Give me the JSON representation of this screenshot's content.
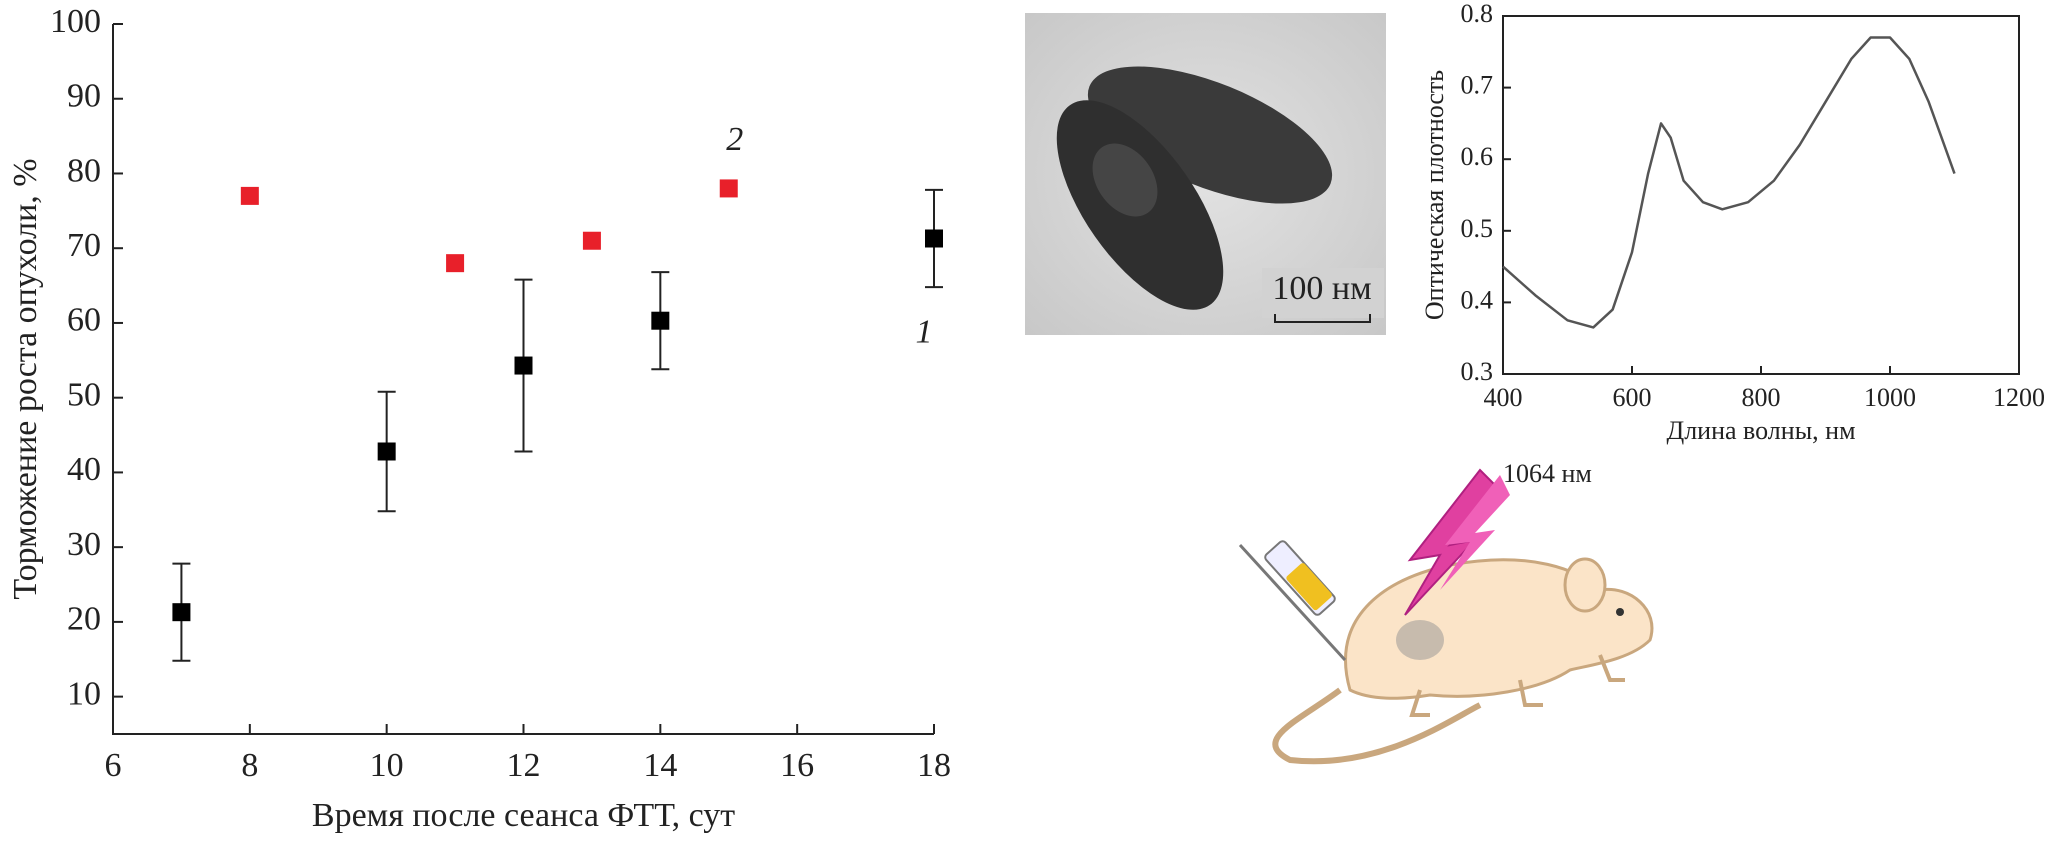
{
  "chart_data": [
    {
      "type": "scatter",
      "xlabel": "Время после сеанса ФТТ, сут",
      "ylabel": "Торможение роста опухоли, %",
      "xlim": [
        6,
        18
      ],
      "xticks": [
        6,
        8,
        10,
        12,
        14,
        16,
        18
      ],
      "ylim": [
        5,
        100
      ],
      "yticks": [
        10,
        20,
        30,
        40,
        50,
        60,
        70,
        80,
        90,
        100
      ],
      "series": [
        {
          "name": "1",
          "color": "#000000",
          "x": [
            7,
            10,
            12,
            14,
            18
          ],
          "values": [
            21.3,
            42.8,
            54.3,
            60.3,
            71.3
          ],
          "errors": [
            6.5,
            8,
            11.5,
            6.5,
            6.5
          ]
        },
        {
          "name": "2",
          "color": "#e8202a",
          "x": [
            8,
            11,
            13,
            15
          ],
          "values": [
            77,
            68,
            71,
            78
          ]
        }
      ]
    },
    {
      "type": "line",
      "xlabel": "Длина волны, нм",
      "ylabel": "Оптическая плотность",
      "xlim": [
        400,
        1200
      ],
      "xticks": [
        400,
        600,
        800,
        1000,
        1200
      ],
      "ylim": [
        0.3,
        0.8
      ],
      "yticks": [
        0.3,
        0.4,
        0.5,
        0.6,
        0.7,
        0.8
      ],
      "series": [
        {
          "color": "#555555",
          "x": [
            400,
            450,
            500,
            540,
            570,
            600,
            625,
            645,
            660,
            680,
            710,
            740,
            780,
            820,
            860,
            900,
            940,
            970,
            1000,
            1030,
            1060,
            1080,
            1100
          ],
          "values": [
            0.45,
            0.41,
            0.375,
            0.365,
            0.39,
            0.47,
            0.58,
            0.65,
            0.63,
            0.57,
            0.54,
            0.53,
            0.54,
            0.57,
            0.62,
            0.68,
            0.74,
            0.77,
            0.77,
            0.74,
            0.68,
            0.63,
            0.58
          ]
        }
      ]
    }
  ],
  "micrograph": {
    "scale_label": "100 нм"
  },
  "illustration": {
    "laser_label": "1064 нм"
  }
}
